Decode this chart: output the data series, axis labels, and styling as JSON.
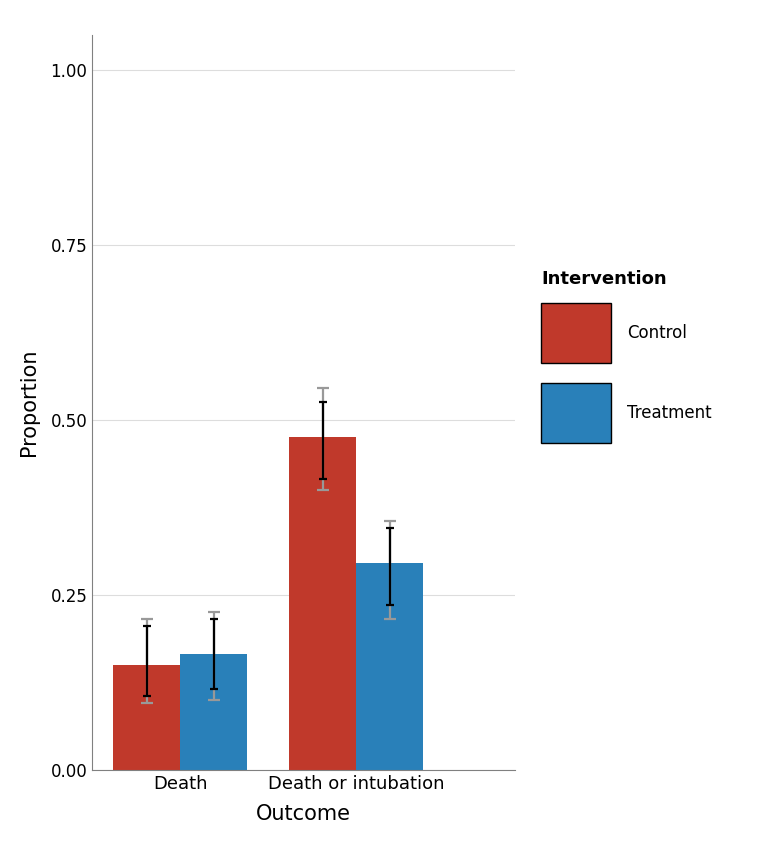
{
  "categories": [
    "Death",
    "Death or intubation"
  ],
  "control_values": [
    0.15,
    0.475
  ],
  "treatment_values": [
    0.165,
    0.295
  ],
  "control_ci_pointwise": [
    [
      0.105,
      0.205
    ],
    [
      0.415,
      0.525
    ]
  ],
  "treatment_ci_pointwise": [
    [
      0.115,
      0.215
    ],
    [
      0.235,
      0.345
    ]
  ],
  "control_ci_simultaneous": [
    [
      0.095,
      0.215
    ],
    [
      0.4,
      0.545
    ]
  ],
  "treatment_ci_simultaneous": [
    [
      0.1,
      0.225
    ],
    [
      0.215,
      0.355
    ]
  ],
  "control_color": "#C0392B",
  "treatment_color": "#2980B9",
  "pointwise_color": "#000000",
  "simultaneous_color": "#999999",
  "xlabel": "Outcome",
  "ylabel": "Proportion",
  "ylim": [
    0.0,
    1.05
  ],
  "yticks": [
    0.0,
    0.25,
    0.5,
    0.75,
    1.0
  ],
  "ytick_labels": [
    "0.00",
    "0.25",
    "0.50",
    "0.75",
    "1.00"
  ],
  "legend_title": "Intervention",
  "legend_labels": [
    "Control",
    "Treatment"
  ],
  "background_color": "#FFFFFF",
  "panel_background": "#FFFFFF",
  "grid_color": "#DDDDDD",
  "bar_width": 0.38,
  "errorbar_capsize": 4,
  "errorbar_lw_pointwise": 1.6,
  "errorbar_lw_simultaneous": 1.6,
  "cap_lw_pointwise": 1.6,
  "cap_lw_simultaneous": 1.6
}
